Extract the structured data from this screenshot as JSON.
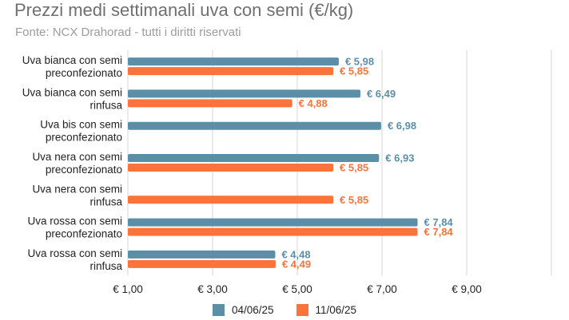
{
  "title": "Prezzi medi settimanali uva con semi (€/kg)",
  "subtitle": "Fonte: NCX Drahorad - tutti i diritti riservati",
  "colors": {
    "series1": "#5b8fa8",
    "series2": "#f9733b",
    "grid": "#d4d4d4",
    "axis_text": "#222222"
  },
  "chart_data": {
    "type": "bar",
    "orientation": "horizontal",
    "categories": [
      [
        "Uva bianca con semi",
        "preconfezionato"
      ],
      [
        "Uva bianca con semi",
        "rinfusa"
      ],
      [
        "Uva bis con semi",
        "preconfezionato"
      ],
      [
        "Uva nera con semi",
        "preconfezionato"
      ],
      [
        "Uva nera con semi",
        "rinfusa"
      ],
      [
        "Uva rossa con semi",
        "preconfezionato"
      ],
      [
        "Uva rossa con semi",
        "rinfusa"
      ]
    ],
    "series": [
      {
        "name": "04/06/25",
        "color": "#5b8fa8",
        "values": [
          5.98,
          6.49,
          6.98,
          6.93,
          null,
          7.84,
          4.48
        ],
        "labels": [
          "€ 5,98",
          "€ 6,49",
          "€ 6,98",
          "€ 6,93",
          "",
          "€ 7,84",
          "€ 4,48"
        ]
      },
      {
        "name": "11/06/25",
        "color": "#f9733b",
        "values": [
          5.85,
          4.88,
          null,
          5.85,
          5.85,
          7.84,
          4.49
        ],
        "labels": [
          "€ 5,85",
          "€ 4,88",
          "",
          "€ 5,85",
          "€ 5,85",
          "€ 7,84",
          "€ 4,49"
        ]
      }
    ],
    "xlim": [
      1,
      11
    ],
    "xticks": [
      1,
      3,
      5,
      7,
      9
    ],
    "xtick_labels": [
      "€ 1,00",
      "€ 3,00",
      "€ 5,00",
      "€ 7,00",
      "€ 9,00"
    ],
    "grid": true,
    "legend_position": "bottom"
  }
}
